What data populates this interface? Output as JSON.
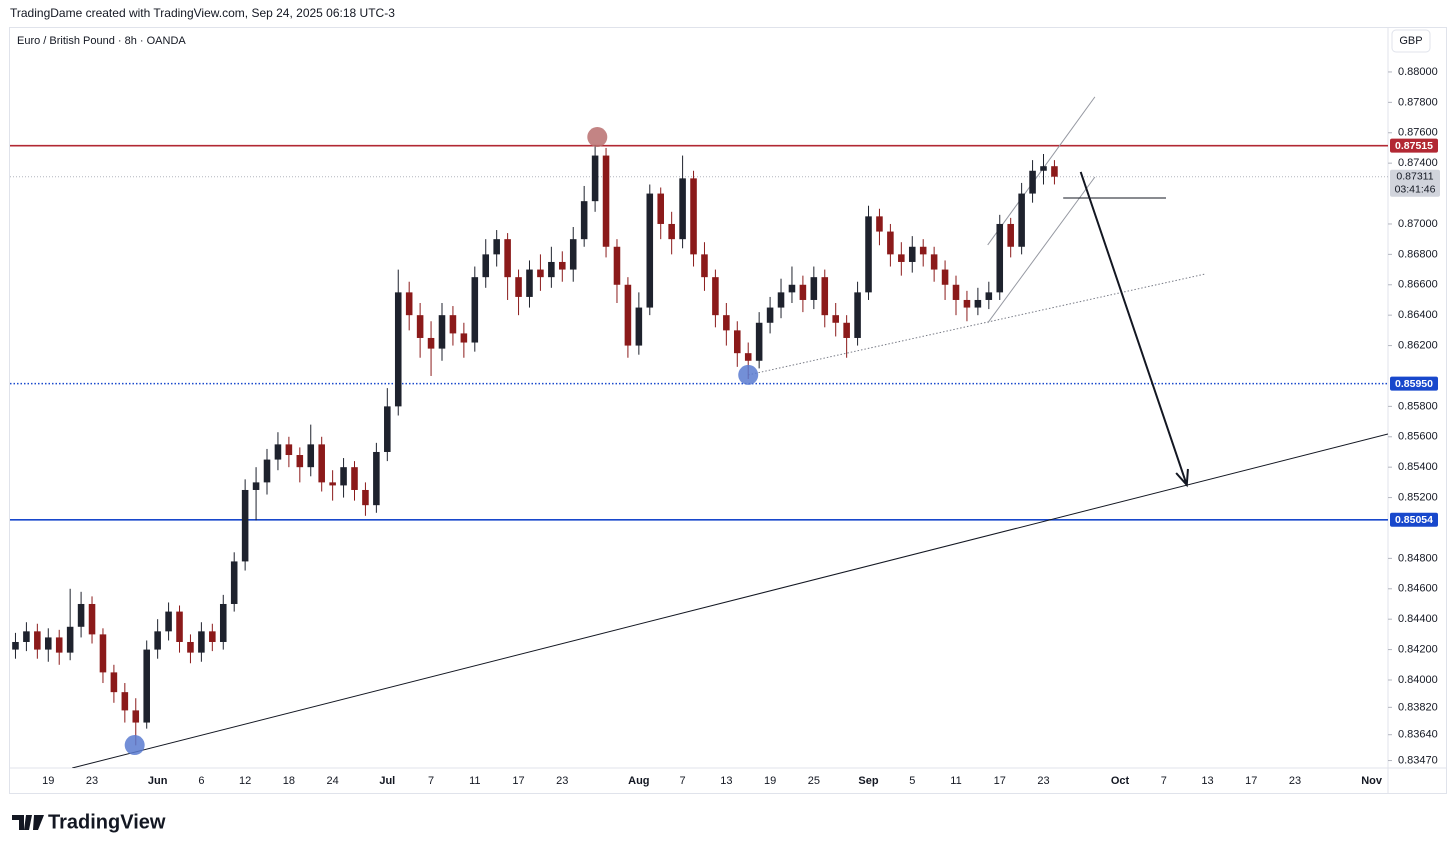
{
  "chart_data": {
    "type": "candlestick",
    "header": "TradingDame created with TradingView.com, Sep 24, 2025 06:18 UTC-3",
    "title": "Euro / British Pound · 8h · OANDA",
    "currency": "GBP",
    "brand": "TradingView",
    "up_color": "#1e222d",
    "down_color": "#8b1a1a",
    "categories": [
      null,
      null,
      null,
      "19",
      null,
      null,
      null,
      "23",
      null,
      null,
      null,
      null,
      null,
      "Jun",
      null,
      null,
      null,
      "6",
      null,
      null,
      null,
      "12",
      null,
      null,
      null,
      "18",
      null,
      null,
      null,
      "24",
      null,
      null,
      null,
      null,
      "Jul",
      null,
      null,
      null,
      "7",
      null,
      null,
      null,
      "11",
      null,
      null,
      null,
      "17",
      null,
      null,
      null,
      "23",
      null,
      null,
      null,
      null,
      null,
      null,
      "Aug",
      null,
      null,
      null,
      "7",
      null,
      null,
      null,
      "13",
      null,
      null,
      null,
      "19",
      null,
      null,
      null,
      "25",
      null,
      null,
      null,
      null,
      "Sep",
      null,
      null,
      null,
      "5",
      null,
      null,
      null,
      "11",
      null,
      null,
      null,
      "17",
      null,
      null,
      null,
      "23",
      null,
      null,
      null,
      null,
      null,
      null,
      "Oct",
      null,
      null,
      null,
      "7",
      null,
      null,
      null,
      "13",
      null,
      null,
      null,
      "17",
      null,
      null,
      null,
      "23",
      null,
      null,
      null,
      null,
      null,
      null,
      "Nov",
      null
    ],
    "open": [
      0.842,
      0.8425,
      0.8432,
      0.842,
      0.8428,
      0.8418,
      0.8435,
      0.845,
      0.843,
      0.8405,
      0.8392,
      0.838,
      0.8372,
      0.842,
      0.8432,
      0.8445,
      0.8425,
      0.8418,
      0.8432,
      0.8425,
      0.845,
      0.8478,
      0.8525,
      0.853,
      0.8545,
      0.8555,
      0.8548,
      0.854,
      0.8555,
      0.853,
      0.8528,
      0.854,
      0.8525,
      0.8515,
      0.855,
      0.858,
      0.8655,
      0.864,
      0.8625,
      0.8618,
      0.864,
      0.8628,
      0.8622,
      0.8665,
      0.868,
      0.869,
      0.8665,
      0.8652,
      0.867,
      0.8665,
      0.8675,
      0.867,
      0.869,
      0.8715,
      0.8745,
      0.8685,
      0.866,
      0.862,
      0.8645,
      0.872,
      0.87,
      0.869,
      0.873,
      0.868,
      0.8665,
      0.864,
      0.863,
      0.8615,
      0.861,
      0.8635,
      0.8645,
      0.8655,
      0.866,
      0.865,
      0.8665,
      0.864,
      0.8635,
      0.8625,
      0.8655,
      0.8705,
      0.8695,
      0.868,
      0.8675,
      0.8685,
      0.868,
      0.867,
      0.866,
      0.865,
      0.8645,
      0.865,
      0.8655,
      0.87,
      0.8685,
      0.872,
      0.8735,
      0.8738,
      null,
      null,
      null,
      null,
      null,
      null,
      null,
      null,
      null,
      null,
      null,
      null,
      null,
      null,
      null,
      null,
      null,
      null,
      null,
      null,
      null,
      null,
      null,
      null,
      null,
      null,
      null,
      null,
      null,
      null
    ],
    "high": [
      0.8431,
      0.8438,
      0.8437,
      0.8434,
      0.8433,
      0.846,
      0.8458,
      0.8455,
      0.8434,
      0.841,
      0.8398,
      0.8388,
      0.8426,
      0.844,
      0.8451,
      0.8449,
      0.843,
      0.8438,
      0.8437,
      0.8456,
      0.8484,
      0.8532,
      0.854,
      0.8552,
      0.8563,
      0.856,
      0.8553,
      0.8568,
      0.856,
      0.8538,
      0.8546,
      0.8544,
      0.853,
      0.8556,
      0.8592,
      0.867,
      0.8662,
      0.8648,
      0.8636,
      0.8648,
      0.8646,
      0.8635,
      0.8672,
      0.869,
      0.8696,
      0.8694,
      0.867,
      0.8676,
      0.868,
      0.8685,
      0.8682,
      0.8698,
      0.8725,
      0.8752,
      0.875,
      0.869,
      0.8665,
      0.8655,
      0.8726,
      0.8724,
      0.8708,
      0.8745,
      0.8735,
      0.8688,
      0.867,
      0.8648,
      0.8636,
      0.8622,
      0.8642,
      0.8652,
      0.8664,
      0.8672,
      0.8666,
      0.8672,
      0.867,
      0.8648,
      0.864,
      0.8662,
      0.8712,
      0.871,
      0.87,
      0.8688,
      0.8692,
      0.869,
      0.8685,
      0.8676,
      0.8666,
      0.8656,
      0.8658,
      0.8662,
      0.8706,
      0.8704,
      0.8727,
      0.8742,
      0.8746,
      0.8742,
      null,
      null,
      null,
      null,
      null,
      null,
      null,
      null,
      null,
      null,
      null,
      null,
      null,
      null,
      null,
      null,
      null,
      null,
      null,
      null,
      null,
      null,
      null,
      null,
      null,
      null,
      null,
      null,
      null,
      null
    ],
    "low": [
      0.8414,
      0.8419,
      0.8414,
      0.8412,
      0.841,
      0.8413,
      0.8428,
      0.8424,
      0.8398,
      0.8385,
      0.8372,
      0.8357,
      0.8368,
      0.8414,
      0.8426,
      0.8418,
      0.8411,
      0.8412,
      0.8419,
      0.842,
      0.8445,
      0.8472,
      0.8505,
      0.8522,
      0.8538,
      0.854,
      0.853,
      0.8534,
      0.8524,
      0.8518,
      0.852,
      0.8518,
      0.8508,
      0.851,
      0.8544,
      0.8574,
      0.863,
      0.8612,
      0.86,
      0.861,
      0.862,
      0.8612,
      0.8616,
      0.8658,
      0.8672,
      0.865,
      0.864,
      0.8645,
      0.8656,
      0.8658,
      0.8662,
      0.8662,
      0.8685,
      0.8708,
      0.8678,
      0.8648,
      0.8612,
      0.8614,
      0.864,
      0.869,
      0.868,
      0.8684,
      0.8672,
      0.8656,
      0.8632,
      0.862,
      0.8606,
      0.8598,
      0.8605,
      0.8628,
      0.8638,
      0.8648,
      0.8642,
      0.8644,
      0.8632,
      0.8626,
      0.8612,
      0.862,
      0.865,
      0.8686,
      0.8672,
      0.8666,
      0.8668,
      0.8672,
      0.8662,
      0.865,
      0.864,
      0.8636,
      0.864,
      0.8644,
      0.865,
      0.8678,
      0.868,
      0.8714,
      0.8726,
      0.8726,
      null,
      null,
      null,
      null,
      null,
      null,
      null,
      null,
      null,
      null,
      null,
      null,
      null,
      null,
      null,
      null,
      null,
      null,
      null,
      null,
      null,
      null,
      null,
      null,
      null,
      null,
      null,
      null,
      null,
      null
    ],
    "close": [
      0.8425,
      0.8432,
      0.842,
      0.8428,
      0.8418,
      0.8435,
      0.845,
      0.843,
      0.8405,
      0.8392,
      0.838,
      0.8372,
      0.842,
      0.8432,
      0.8445,
      0.8425,
      0.8418,
      0.8432,
      0.8425,
      0.845,
      0.8478,
      0.8525,
      0.853,
      0.8545,
      0.8555,
      0.8548,
      0.854,
      0.8555,
      0.853,
      0.8528,
      0.854,
      0.8525,
      0.8515,
      0.855,
      0.858,
      0.8655,
      0.864,
      0.8625,
      0.8618,
      0.864,
      0.8628,
      0.8622,
      0.8665,
      0.868,
      0.869,
      0.8665,
      0.8652,
      0.867,
      0.8665,
      0.8675,
      0.867,
      0.869,
      0.8715,
      0.8745,
      0.8685,
      0.866,
      0.862,
      0.8645,
      0.872,
      0.87,
      0.869,
      0.873,
      0.868,
      0.8665,
      0.864,
      0.863,
      0.8615,
      0.861,
      0.8635,
      0.8645,
      0.8655,
      0.866,
      0.865,
      0.8665,
      0.864,
      0.8635,
      0.8625,
      0.8655,
      0.8705,
      0.8695,
      0.868,
      0.8675,
      0.8685,
      0.868,
      0.867,
      0.866,
      0.865,
      0.8645,
      0.865,
      0.8655,
      0.87,
      0.8685,
      0.872,
      0.8735,
      0.8738,
      0.87311,
      null,
      null,
      null,
      null,
      null,
      null,
      null,
      null,
      null,
      null,
      null,
      null,
      null,
      null,
      null,
      null,
      null,
      null,
      null,
      null,
      null,
      null,
      null,
      null,
      null,
      null,
      null,
      null,
      null,
      null
    ],
    "ylim": [
      0.83421,
      0.88276
    ],
    "yticks": [
      {
        "value": 0.88,
        "label": "0.88000"
      },
      {
        "value": 0.878,
        "label": "0.87800"
      },
      {
        "value": 0.876,
        "label": "0.87600"
      },
      {
        "value": 0.874,
        "label": "0.87400"
      },
      {
        "value": 0.87,
        "label": "0.87000"
      },
      {
        "value": 0.868,
        "label": "0.86800"
      },
      {
        "value": 0.866,
        "label": "0.86600"
      },
      {
        "value": 0.864,
        "label": "0.86400"
      },
      {
        "value": 0.862,
        "label": "0.86200"
      },
      {
        "value": 0.858,
        "label": "0.85800"
      },
      {
        "value": 0.856,
        "label": "0.85600"
      },
      {
        "value": 0.854,
        "label": "0.85400"
      },
      {
        "value": 0.852,
        "label": "0.85200"
      },
      {
        "value": 0.848,
        "label": "0.84800"
      },
      {
        "value": 0.846,
        "label": "0.84600"
      },
      {
        "value": 0.844,
        "label": "0.84400"
      },
      {
        "value": 0.842,
        "label": "0.84200"
      },
      {
        "value": 0.84,
        "label": "0.84000"
      },
      {
        "value": 0.8382,
        "label": "0.83820"
      },
      {
        "value": 0.8364,
        "label": "0.83640"
      },
      {
        "value": 0.8347,
        "label": "0.83470"
      }
    ],
    "levels": [
      {
        "price": 0.87515,
        "color": "#b22833",
        "style": "solid"
      },
      {
        "price": 0.8595,
        "label": "0.85950",
        "color": "#1848cc",
        "style": "dotted"
      },
      {
        "price": 0.85054,
        "color": "#1848cc",
        "style": "solid"
      }
    ],
    "last_price": {
      "price": 0.87311,
      "countdown": "03:41:46"
    },
    "trendlines": [
      {
        "from": [
          5.19,
          0.83421
        ],
        "to": [
          125.5,
          0.85618
        ],
        "color": "#131722",
        "style": "solid"
      },
      {
        "from": [
          67.0,
          0.86007
        ],
        "to": [
          108.8,
          0.86671
        ],
        "color": "#787b86",
        "style": "dotted"
      },
      {
        "from": [
          88.9,
          0.86862
        ],
        "to": [
          98.7,
          0.87836
        ],
        "color": "#9598a1",
        "style": "solid"
      },
      {
        "from": [
          88.9,
          0.86349
        ],
        "to": [
          98.7,
          0.87309
        ],
        "color": "#9598a1",
        "style": "solid"
      },
      {
        "from": [
          95.8,
          0.87171
        ],
        "to": [
          105.2,
          0.87171
        ],
        "color": "#131722",
        "style": "solid"
      }
    ],
    "arrow": {
      "from": [
        97.4,
        0.87342
      ],
      "to": [
        107.1,
        0.85283
      ],
      "color": "#131722"
    },
    "circles": [
      {
        "at": [
          53.2,
          0.87572
        ],
        "color": "#b86f6f"
      },
      {
        "at": [
          67.0,
          0.86007
        ],
        "color": "#5b7bd0"
      },
      {
        "at": [
          10.9,
          0.83572
        ],
        "color": "#5b7bd0"
      }
    ]
  }
}
